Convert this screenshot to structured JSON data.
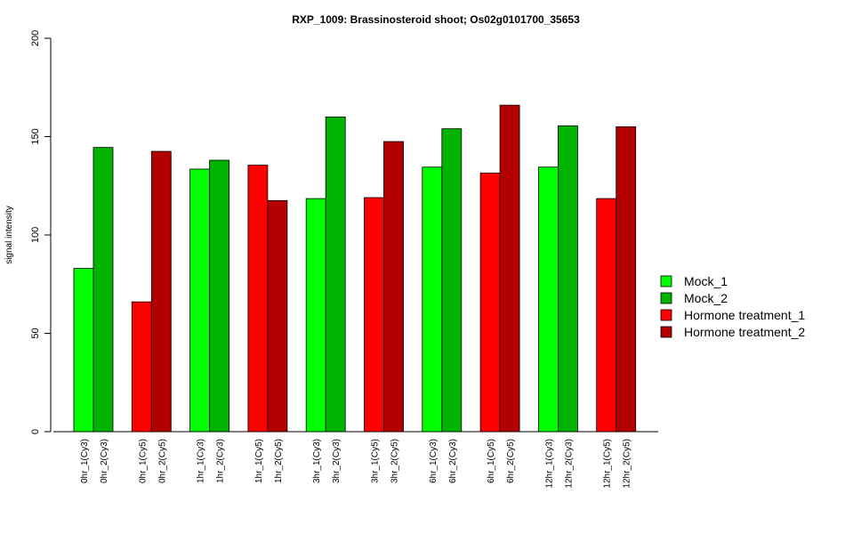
{
  "chart_data": {
    "type": "bar",
    "title": "RXP_1009: Brassinosteroid shoot; Os02g0101700_35653",
    "xlabel": "",
    "ylabel": "signal intensity",
    "ylim": [
      0,
      200
    ],
    "yticks": [
      0,
      50,
      100,
      150,
      200
    ],
    "grid": false,
    "legend_position": "right",
    "legend": [
      {
        "name": "Mock_1",
        "color": "#00ff00"
      },
      {
        "name": "Mock_2",
        "color": "#00b300"
      },
      {
        "name": "Hormone treatment_1",
        "color": "#ff0000"
      },
      {
        "name": "Hormone treatment_2",
        "color": "#b30000"
      }
    ],
    "groups": [
      {
        "bars": [
          {
            "label": "0hr_1(Cy3)",
            "value": 83,
            "color": "#00ff00"
          },
          {
            "label": "0hr_2(Cy3)",
            "value": 144.5,
            "color": "#00b300"
          }
        ]
      },
      {
        "bars": [
          {
            "label": "0hr_1(Cy5)",
            "value": 66,
            "color": "#ff0000"
          },
          {
            "label": "0hr_2(Cy5)",
            "value": 142.5,
            "color": "#b30000"
          }
        ]
      },
      {
        "bars": [
          {
            "label": "1hr_1(Cy3)",
            "value": 133.5,
            "color": "#00ff00"
          },
          {
            "label": "1hr_2(Cy3)",
            "value": 138,
            "color": "#00b300"
          }
        ]
      },
      {
        "bars": [
          {
            "label": "1hr_1(Cy5)",
            "value": 135.5,
            "color": "#ff0000"
          },
          {
            "label": "1hr_2(Cy5)",
            "value": 117.5,
            "color": "#b30000"
          }
        ]
      },
      {
        "bars": [
          {
            "label": "3hr_1(Cy3)",
            "value": 118.5,
            "color": "#00ff00"
          },
          {
            "label": "3hr_2(Cy3)",
            "value": 160,
            "color": "#00b300"
          }
        ]
      },
      {
        "bars": [
          {
            "label": "3hr_1(Cy5)",
            "value": 119,
            "color": "#ff0000"
          },
          {
            "label": "3hr_2(Cy5)",
            "value": 147.5,
            "color": "#b30000"
          }
        ]
      },
      {
        "bars": [
          {
            "label": "6hr_1(Cy3)",
            "value": 134.5,
            "color": "#00ff00"
          },
          {
            "label": "6hr_2(Cy3)",
            "value": 154,
            "color": "#00b300"
          }
        ]
      },
      {
        "bars": [
          {
            "label": "6hr_1(Cy5)",
            "value": 131.5,
            "color": "#ff0000"
          },
          {
            "label": "6hr_2(Cy5)",
            "value": 166,
            "color": "#b30000"
          }
        ]
      },
      {
        "bars": [
          {
            "label": "12hr_1(Cy3)",
            "value": 134.5,
            "color": "#00ff00"
          },
          {
            "label": "12hr_2(Cy3)",
            "value": 155.5,
            "color": "#00b300"
          }
        ]
      },
      {
        "bars": [
          {
            "label": "12hr_1(Cy5)",
            "value": 118.5,
            "color": "#ff0000"
          },
          {
            "label": "12hr_2(Cy5)",
            "value": 155,
            "color": "#b30000"
          }
        ]
      }
    ]
  }
}
